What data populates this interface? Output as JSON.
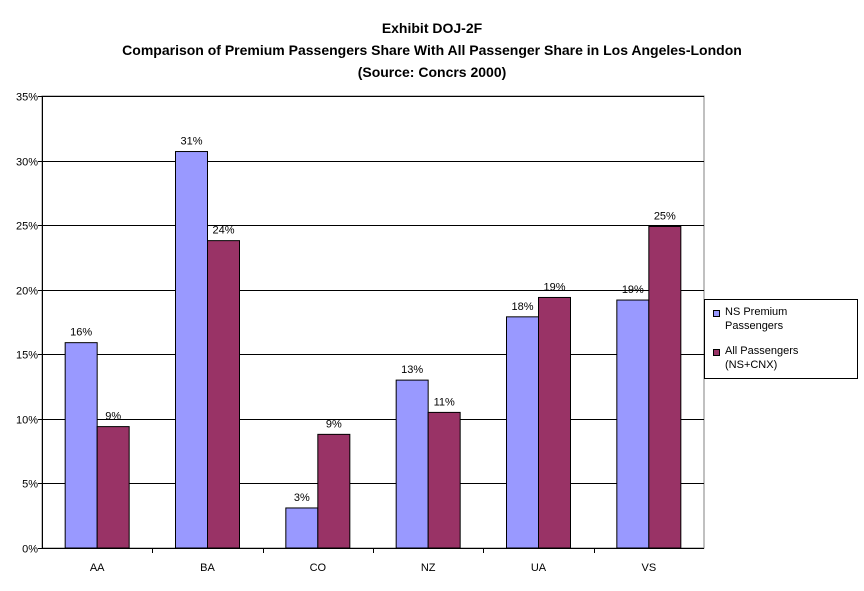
{
  "titles": {
    "line1": "Exhibit DOJ-2F",
    "line2": "Comparison of Premium Passengers Share With All Passenger Share in Los Angeles-London",
    "line3": "(Source: Concrs 2000)"
  },
  "legend": {
    "series1": "NS Premium Passengers",
    "series2": "All Passengers (NS+CNX)"
  },
  "colors": {
    "series1": "#9999FF",
    "series2": "#993366"
  },
  "chart_data": {
    "type": "bar",
    "title": "Comparison of Premium Passengers Share With All Passenger Share in Los Angeles-London",
    "categories": [
      "AA",
      "BA",
      "CO",
      "NZ",
      "UA",
      "VS"
    ],
    "series": [
      {
        "name": "NS Premium Passengers",
        "values": [
          15.9,
          30.7,
          3.1,
          13.0,
          17.9,
          19.2
        ],
        "labels": [
          "16%",
          "31%",
          "3%",
          "13%",
          "18%",
          "19%"
        ]
      },
      {
        "name": "All Passengers (NS+CNX)",
        "values": [
          9.4,
          23.8,
          8.8,
          10.5,
          19.4,
          24.9
        ],
        "labels": [
          "9%",
          "24%",
          "9%",
          "11%",
          "19%",
          "25%"
        ]
      }
    ],
    "ylim": [
      0,
      35
    ],
    "yticks": [
      0,
      5,
      10,
      15,
      20,
      25,
      30,
      35
    ],
    "ytick_labels": [
      "0%",
      "5%",
      "10%",
      "15%",
      "20%",
      "25%",
      "30%",
      "35%"
    ],
    "grid": true,
    "legend_position": "right"
  }
}
